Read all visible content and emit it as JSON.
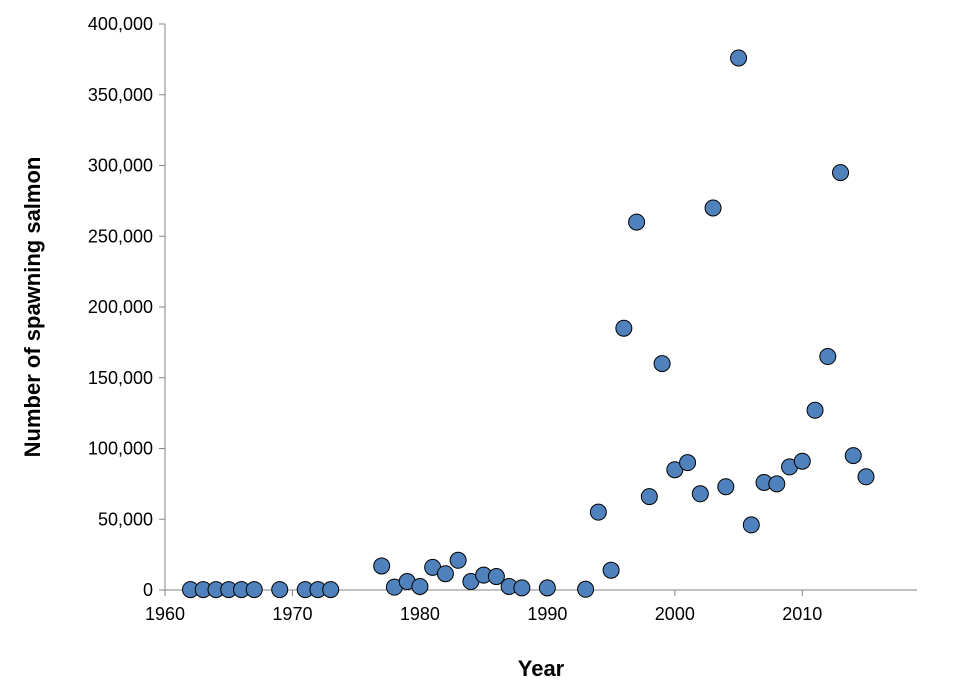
{
  "chart_data": {
    "type": "scatter",
    "xlabel": "Year",
    "ylabel": "Number of spawning salmon",
    "xlim": [
      1960,
      2019
    ],
    "ylim": [
      0,
      400000
    ],
    "x_ticks": [
      1960,
      1970,
      1980,
      1990,
      2000,
      2010
    ],
    "x_tick_labels": [
      "1960",
      "1970",
      "1980",
      "1990",
      "2000",
      "2010"
    ],
    "y_ticks": [
      0,
      50000,
      100000,
      150000,
      200000,
      250000,
      300000,
      350000,
      400000
    ],
    "y_tick_labels": [
      "0",
      "50,000",
      "100,000",
      "150,000",
      "200,000",
      "250,000",
      "300,000",
      "350,000",
      "400,000"
    ],
    "grid": false,
    "legend": "none",
    "marker_fill": "#4f81bd",
    "marker_stroke": "#000000",
    "series": [
      {
        "x": [
          1962,
          1963,
          1964,
          1965,
          1966,
          1967,
          1969,
          1971,
          1972,
          1973,
          1977,
          1978,
          1979,
          1980,
          1981,
          1982,
          1983,
          1984,
          1985,
          1986,
          1987,
          1988,
          1990,
          1993,
          1994,
          1995,
          1996,
          1997,
          1998,
          1999,
          2000,
          2001,
          2002,
          2003,
          2004,
          2005,
          2006,
          2007,
          2008,
          2009,
          2010,
          2011,
          2012,
          2013,
          2014,
          2015
        ],
        "y": [
          300,
          300,
          300,
          300,
          300,
          300,
          300,
          300,
          300,
          300,
          17000,
          2000,
          6000,
          2500,
          16000,
          11500,
          21000,
          6000,
          10500,
          9500,
          2500,
          1500,
          1500,
          500,
          55000,
          14000,
          185000,
          260000,
          66000,
          160000,
          85000,
          90000,
          68000,
          270000,
          73000,
          376000,
          46000,
          76000,
          75000,
          87000,
          91000,
          127000,
          165000,
          295000,
          95000,
          80000
        ]
      }
    ]
  }
}
